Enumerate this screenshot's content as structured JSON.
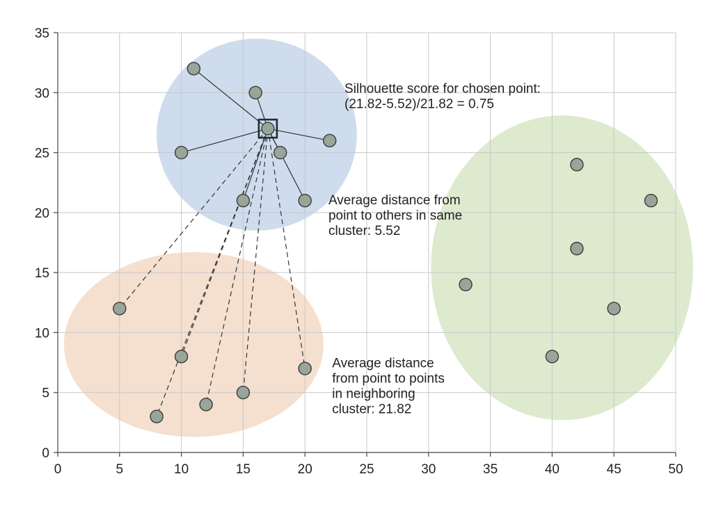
{
  "chart_data": {
    "type": "scatter",
    "title": "",
    "xlabel": "",
    "ylabel": "",
    "xlim": [
      0,
      50
    ],
    "ylim": [
      0,
      35
    ],
    "xticks": [
      0,
      5,
      10,
      15,
      20,
      25,
      30,
      35,
      40,
      45,
      50
    ],
    "yticks": [
      0,
      5,
      10,
      15,
      20,
      25,
      30,
      35
    ],
    "grid": true,
    "clusters": [
      {
        "color": "#c5d6ea",
        "ellipse": {
          "cx": 16.1,
          "cy": 26.5,
          "rx": 8.1,
          "ry": 8.0
        },
        "points": [
          [
            11,
            32
          ],
          [
            16,
            30
          ],
          [
            17,
            27
          ],
          [
            10,
            25
          ],
          [
            18,
            25
          ],
          [
            22,
            26
          ],
          [
            15,
            21
          ],
          [
            20,
            21
          ]
        ]
      },
      {
        "color": "#f3d9c6",
        "ellipse": {
          "cx": 11,
          "cy": 9,
          "rx": 10.5,
          "ry": 7.7
        },
        "points": [
          [
            5,
            12
          ],
          [
            10,
            8
          ],
          [
            20,
            7
          ],
          [
            12,
            4
          ],
          [
            15,
            5
          ],
          [
            8,
            3
          ]
        ]
      },
      {
        "color": "#d7e6c6",
        "ellipse": {
          "cx": 40.8,
          "cy": 15.4,
          "rx": 10.6,
          "ry": 12.7
        },
        "points": [
          [
            42,
            24
          ],
          [
            48,
            21
          ],
          [
            42,
            17
          ],
          [
            33,
            14
          ],
          [
            45,
            12
          ],
          [
            40,
            8
          ]
        ]
      }
    ],
    "chosen_point": [
      17,
      27
    ],
    "point_color": "#9aa59a",
    "annotations": [
      {
        "lines": [
          "Silhouette score for chosen point:",
          "(21.82-5.52)/21.82 = 0.75"
        ],
        "x": 23.2,
        "y": 30
      },
      {
        "lines": [
          "Average distance from",
          "point to others in same",
          "cluster: 5.52"
        ],
        "x": 21.9,
        "y": 20.7
      },
      {
        "lines": [
          "Average distance",
          "from point to points",
          "in neighboring",
          "cluster: 21.82"
        ],
        "x": 22.2,
        "y": 7.1
      }
    ]
  }
}
